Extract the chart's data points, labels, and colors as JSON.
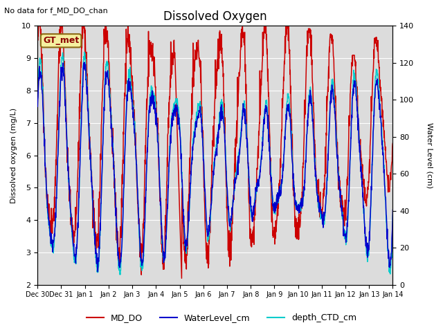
{
  "title": "Dissolved Oxygen",
  "subtitle": "No data for f_MD_DO_chan",
  "ylabel_left": "Dissolved oxygen (mg/L)",
  "ylabel_right": "Water Level (cm)",
  "ylim_left": [
    2.0,
    10.0
  ],
  "ylim_right": [
    0,
    140
  ],
  "yticks_left": [
    2.0,
    3.0,
    4.0,
    5.0,
    6.0,
    7.0,
    8.0,
    9.0,
    10.0
  ],
  "yticks_right": [
    0,
    20,
    40,
    60,
    80,
    100,
    120,
    140
  ],
  "box_label": "GT_met",
  "background_color": "#dcdcdc",
  "line_colors": {
    "MD_DO": "#cc0000",
    "WaterLevel_cm": "#0000cc",
    "depth_CTD_cm": "#00cccc"
  },
  "xtick_labels": [
    "Dec 30",
    "Dec 31",
    "Jan 1",
    "Jan 2",
    "Jan 3",
    "Jan 4",
    "Jan 5",
    "Jan 6",
    "Jan 7",
    "Jan 8",
    "Jan 9",
    "Jan 10",
    "Jan 11",
    "Jan 12",
    "Jan 13",
    "Jan 14"
  ],
  "num_days": 15,
  "num_points": 1500,
  "tidal_period_days": 0.95,
  "tidal_amplitude": 55,
  "tidal_mean": 65,
  "do_amplitude": 3.2,
  "do_mean": 6.5,
  "figsize": [
    6.4,
    4.8
  ],
  "dpi": 100
}
